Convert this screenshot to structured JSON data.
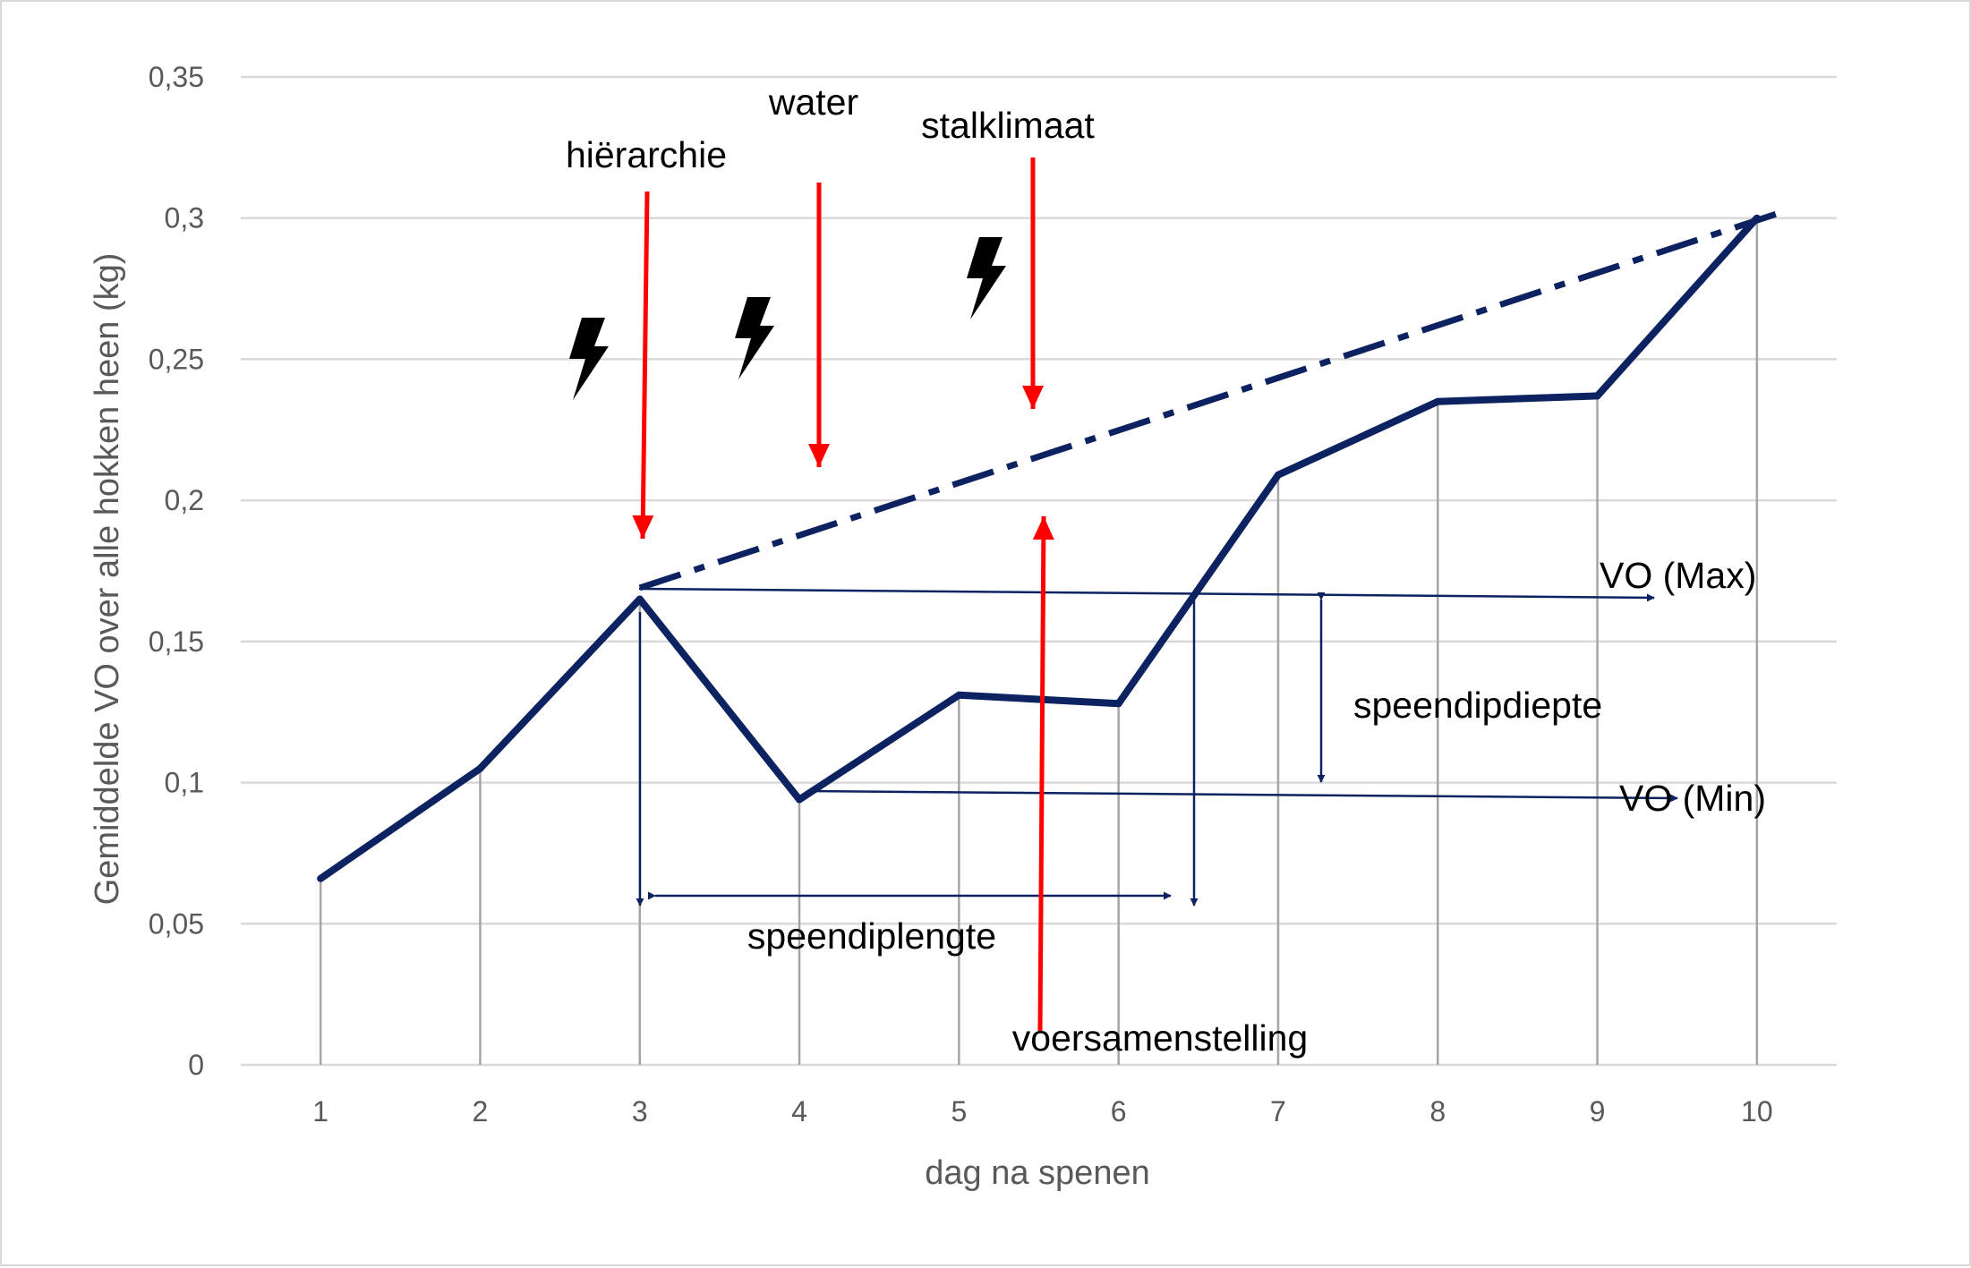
{
  "chart_data": {
    "type": "line",
    "title": "",
    "xlabel": "dag na spenen",
    "ylabel": "Gemiddelde VO over alle hokken heen (kg)",
    "categories": [
      "1",
      "2",
      "3",
      "4",
      "5",
      "6",
      "7",
      "8",
      "9",
      "10"
    ],
    "x": [
      1,
      2,
      3,
      4,
      5,
      6,
      7,
      8,
      9,
      10
    ],
    "yticks": [
      "0",
      "0,05",
      "0,1",
      "0,15",
      "0,2",
      "0,25",
      "0,3",
      "0,35"
    ],
    "ylim": [
      0,
      0.35
    ],
    "xlim": [
      0.5,
      10.5
    ],
    "grid": true,
    "legend": "none",
    "series": [
      {
        "values": [
          0.066,
          0.105,
          0.165,
          0.094,
          0.131,
          0.128,
          0.209,
          0.235,
          0.237,
          0.3
        ],
        "style": "solid"
      }
    ],
    "trend_line": {
      "style": "dash-dot",
      "from": [
        3,
        0.169
      ],
      "to": [
        10.15,
        0.302
      ]
    },
    "annotations": {
      "hierarchie": "hiërarchie",
      "water": "water",
      "stalklimaat": "stalklimaat",
      "voersamenstelling": "voersamenstelling",
      "vo_max": "VO (Max)",
      "vo_min": "VO (Min)",
      "speendipdiepte": "speendipdiepte",
      "speendiplengte": "speendiplengte"
    },
    "colors": {
      "series": "#0d2260",
      "annotation_arrow": "#0d2260",
      "factor_arrow": "#ff0000",
      "grid": "#d9d9d9",
      "drop_line": "#a6a6a6",
      "text": "#595959"
    }
  }
}
